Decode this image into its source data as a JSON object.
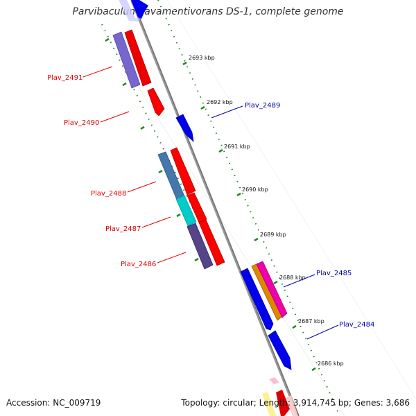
{
  "map": {
    "title": "Parvibaculum lavamentivorans DS-1, complete genome",
    "accession": "Accession: NC_009719",
    "topology": "Topology: circular; Length: 3,914,745 bp; Genes: 3,686"
  },
  "ticks": [
    "2693 kbp",
    "2692 kbp",
    "2691 kbp",
    "2690 kbp",
    "2689 kbp",
    "2688 kbp",
    "2687 kbp",
    "2686 kbp"
  ],
  "genes": {
    "reverse": [
      "Plav_2491",
      "Plav_2490",
      "Plav_2488",
      "Plav_2487",
      "Plav_2486"
    ],
    "forward": [
      "Plav_2489",
      "Plav_2485",
      "Plav_2484"
    ]
  },
  "colors": {
    "reverse_label": "#dd0000",
    "forward_label": "#0000aa",
    "gene_red": "#ff0000",
    "gene_blue": "#0000ee",
    "tick_green": "#228822",
    "backbone": "#888888"
  }
}
